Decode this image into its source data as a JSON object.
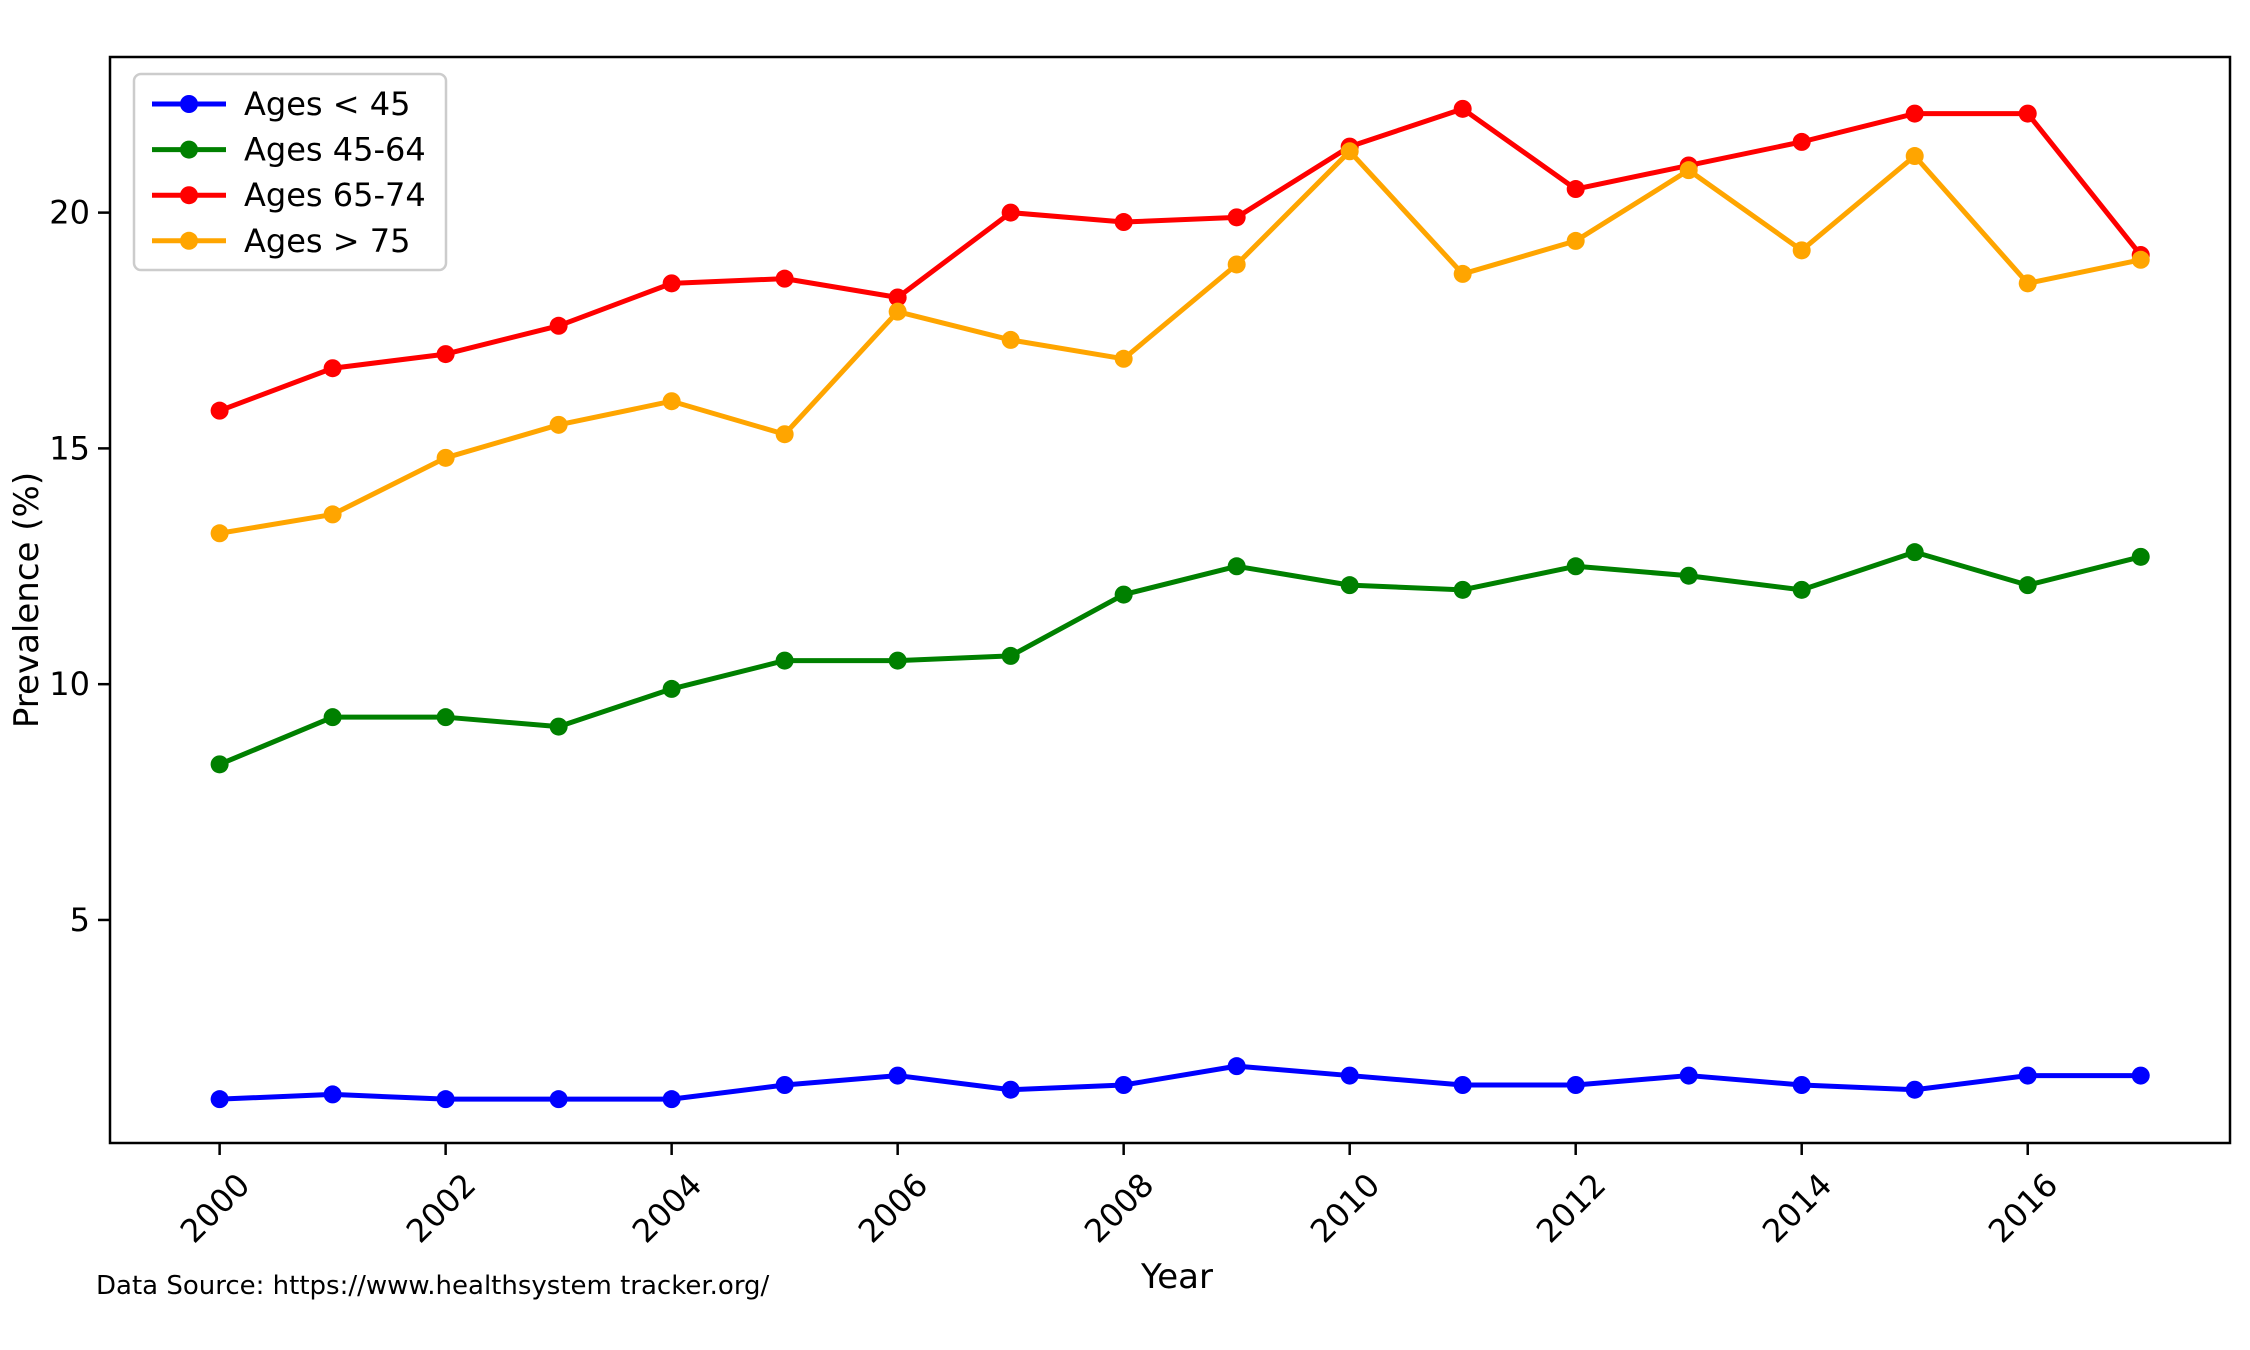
{
  "figure": {
    "background": "#ffffff",
    "xlabel": "Year",
    "ylabel": "Prevalence (%)",
    "source_note": "Data Source: https://www.healthsystem tracker.org/"
  },
  "legend": {
    "position": "upper left",
    "entries": [
      "Ages < 45",
      "Ages 45-64",
      "Ages 65-74",
      "Ages > 75"
    ]
  },
  "chart_data": {
    "type": "line",
    "title": "",
    "xlabel": "Year",
    "ylabel": "Prevalence (%)",
    "x": [
      2000,
      2001,
      2002,
      2003,
      2004,
      2005,
      2006,
      2007,
      2008,
      2009,
      2010,
      2011,
      2012,
      2013,
      2014,
      2015,
      2016,
      2017
    ],
    "series": [
      {
        "name": "Ages < 45",
        "color": "#0000ff",
        "values": [
          1.2,
          1.3,
          1.2,
          1.2,
          1.2,
          1.5,
          1.7,
          1.4,
          1.5,
          1.9,
          1.7,
          1.5,
          1.5,
          1.7,
          1.5,
          1.4,
          1.7,
          1.7
        ]
      },
      {
        "name": "Ages 45-64",
        "color": "#008000",
        "values": [
          8.3,
          9.3,
          9.3,
          9.1,
          9.9,
          10.5,
          10.5,
          10.6,
          11.9,
          12.5,
          12.1,
          12.0,
          12.5,
          12.3,
          12.0,
          12.8,
          12.1,
          12.7
        ]
      },
      {
        "name": "Ages 65-74",
        "color": "#ff0000",
        "values": [
          15.8,
          16.7,
          17.0,
          17.6,
          18.5,
          18.6,
          18.2,
          20.0,
          19.8,
          19.9,
          21.4,
          22.2,
          20.5,
          21.0,
          21.5,
          22.1,
          22.1,
          19.1
        ]
      },
      {
        "name": "Ages > 75",
        "color": "#ffa500",
        "values": [
          13.2,
          13.6,
          14.8,
          15.5,
          16.0,
          15.3,
          17.9,
          17.3,
          16.9,
          18.9,
          21.3,
          18.7,
          19.4,
          20.9,
          19.2,
          21.2,
          18.5,
          19.0
        ]
      }
    ],
    "xticks": [
      2000,
      2002,
      2004,
      2006,
      2008,
      2010,
      2012,
      2014,
      2016
    ],
    "yticks": [
      5,
      10,
      15,
      20
    ],
    "xlim": [
      1999.03,
      2017.79
    ],
    "ylim": [
      0.27,
      23.3
    ],
    "grid": false,
    "marker": "o",
    "legend_position": "upper left"
  }
}
